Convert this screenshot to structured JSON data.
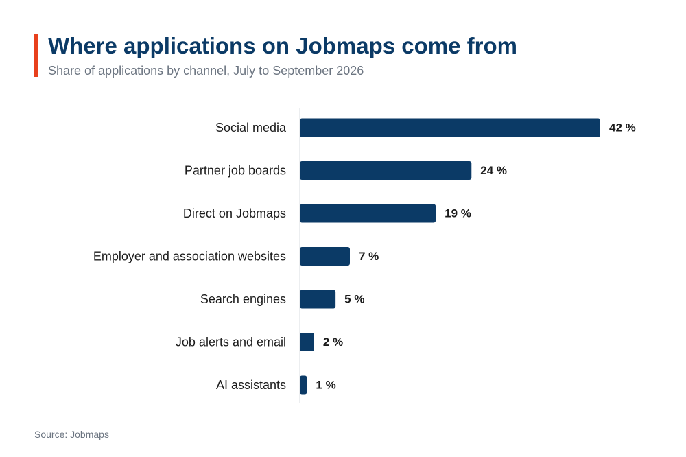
{
  "header": {
    "title": "Where applications on Jobmaps come from",
    "subtitle": "Share of applications by channel, July to September 2026"
  },
  "footer": {
    "source": "Source: Jobmaps"
  },
  "colors": {
    "accent": "#e8401c",
    "title": "#0b3a66",
    "bar": "#0b3a66",
    "subtitle": "#6b7480",
    "label": "#1b1b1b",
    "axis": "#d9dde2",
    "source": "#6b7480"
  },
  "chart_data": {
    "type": "bar",
    "orientation": "horizontal",
    "title": "Where applications on Jobmaps come from",
    "subtitle": "Share of applications by channel, July to September 2026",
    "categories": [
      "Social media",
      "Partner job boards",
      "Direct on Jobmaps",
      "Employer and association websites",
      "Search engines",
      "Job alerts and email",
      "AI assistants"
    ],
    "values": [
      42,
      24,
      19,
      7,
      5,
      2,
      1
    ],
    "value_labels": [
      "42 %",
      "24 %",
      "19 %",
      "7 %",
      "5 %",
      "2 %",
      "1 %"
    ],
    "xlim": [
      0,
      42
    ],
    "unit": "%",
    "grid": false,
    "legend": "none"
  }
}
